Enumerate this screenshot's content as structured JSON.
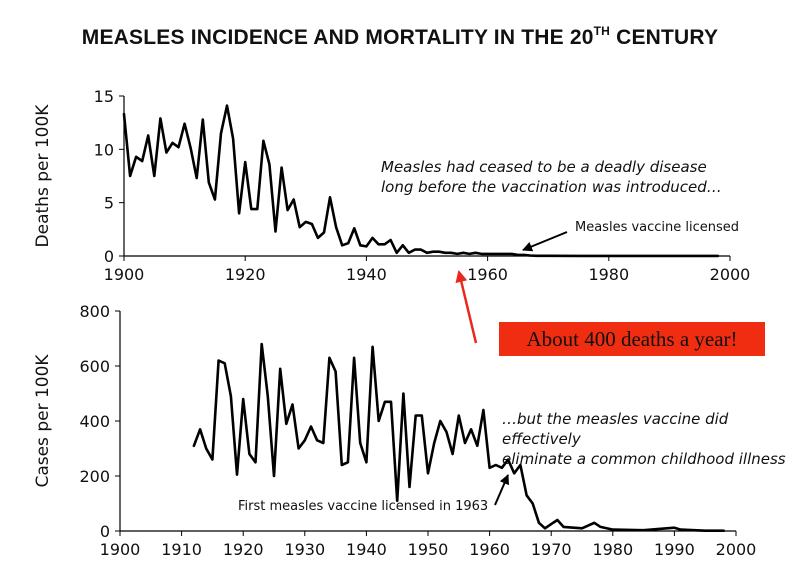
{
  "header": {
    "title_main": "MEASLES INCIDENCE AND MORTALITY IN THE 20",
    "title_sup": "TH",
    "title_end": " CENTURY"
  },
  "annotations": {
    "top_note_line1": "Measles had ceased to be a deadly disease",
    "top_note_line2": "long before the vaccination was introduced…",
    "vaccine_licensed": "Measles vaccine licensed",
    "bottom_note_line1": "…but the measles vaccine did effectively",
    "bottom_note_line2": "eliminate a common childhood illness",
    "first_vaccine": "First measles vaccine  licensed in 1963",
    "callout": "About 400 deaths a year!"
  },
  "colors": {
    "line": "#000000",
    "callout_bg": "#f02d10",
    "arrow_red": "#e8281a"
  },
  "chart_data": [
    {
      "type": "line",
      "ylabel": "Deaths per 100K",
      "xlim": [
        1900,
        2000
      ],
      "ylim": [
        0,
        15
      ],
      "xticks": [
        1900,
        1920,
        1940,
        1960,
        1980,
        2000
      ],
      "yticks": [
        0,
        5,
        10,
        15
      ],
      "grid": false,
      "x": [
        1900,
        1901,
        1902,
        1903,
        1904,
        1905,
        1906,
        1907,
        1908,
        1909,
        1910,
        1911,
        1912,
        1913,
        1914,
        1915,
        1916,
        1917,
        1918,
        1919,
        1920,
        1921,
        1922,
        1923,
        1924,
        1925,
        1926,
        1927,
        1928,
        1929,
        1930,
        1931,
        1932,
        1933,
        1934,
        1935,
        1936,
        1937,
        1938,
        1939,
        1940,
        1941,
        1942,
        1943,
        1944,
        1945,
        1946,
        1947,
        1948,
        1949,
        1950,
        1951,
        1952,
        1953,
        1954,
        1955,
        1956,
        1957,
        1958,
        1959,
        1960,
        1961,
        1962,
        1963,
        1964,
        1965,
        1966,
        1967,
        1968,
        1970,
        1975,
        1980,
        1985,
        1990,
        1995,
        1998
      ],
      "y": [
        13.3,
        7.5,
        9.3,
        8.9,
        11.3,
        7.5,
        12.9,
        9.7,
        10.6,
        10.2,
        12.4,
        10.1,
        7.3,
        12.8,
        6.9,
        5.3,
        11.5,
        14.1,
        11,
        4,
        8.8,
        4.4,
        4.4,
        10.8,
        8.6,
        2.3,
        8.3,
        4.3,
        5.3,
        2.7,
        3.2,
        3,
        1.7,
        2.2,
        5.5,
        2.7,
        1,
        1.2,
        2.6,
        1,
        0.9,
        1.7,
        1.1,
        1.1,
        1.5,
        0.3,
        1,
        0.3,
        0.6,
        0.6,
        0.3,
        0.4,
        0.4,
        0.3,
        0.3,
        0.2,
        0.3,
        0.2,
        0.3,
        0.2,
        0.2,
        0.2,
        0.2,
        0.2,
        0.2,
        0.1,
        0.1,
        0.05,
        0.02,
        0.02,
        0.01,
        0.01,
        0.01,
        0.01,
        0.01,
        0.01
      ]
    },
    {
      "type": "line",
      "ylabel": "Cases  per 100K",
      "xlim": [
        1900,
        2000
      ],
      "ylim": [
        0,
        800
      ],
      "xticks": [
        1900,
        1910,
        1920,
        1930,
        1940,
        1950,
        1960,
        1970,
        1980,
        1990,
        2000
      ],
      "yticks": [
        0,
        200,
        400,
        600,
        800
      ],
      "grid": false,
      "x": [
        1912,
        1913,
        1914,
        1915,
        1916,
        1917,
        1918,
        1919,
        1920,
        1921,
        1922,
        1923,
        1924,
        1925,
        1926,
        1927,
        1928,
        1929,
        1930,
        1931,
        1932,
        1933,
        1934,
        1935,
        1936,
        1937,
        1938,
        1939,
        1940,
        1941,
        1942,
        1943,
        1944,
        1945,
        1946,
        1947,
        1948,
        1949,
        1950,
        1951,
        1952,
        1953,
        1954,
        1955,
        1956,
        1957,
        1958,
        1959,
        1960,
        1961,
        1962,
        1963,
        1964,
        1965,
        1966,
        1967,
        1968,
        1969,
        1970,
        1971,
        1972,
        1975,
        1977,
        1978,
        1980,
        1985,
        1990,
        1991,
        1995,
        1998
      ],
      "y": [
        310,
        370,
        300,
        260,
        620,
        610,
        490,
        205,
        480,
        280,
        250,
        680,
        490,
        200,
        590,
        390,
        460,
        300,
        330,
        380,
        330,
        320,
        630,
        580,
        240,
        250,
        630,
        320,
        250,
        670,
        400,
        470,
        470,
        110,
        500,
        160,
        420,
        420,
        210,
        320,
        400,
        360,
        280,
        420,
        320,
        370,
        310,
        440,
        230,
        240,
        230,
        260,
        210,
        240,
        130,
        100,
        30,
        10,
        25,
        40,
        15,
        10,
        30,
        15,
        5,
        3,
        12,
        5,
        1,
        1
      ]
    }
  ]
}
